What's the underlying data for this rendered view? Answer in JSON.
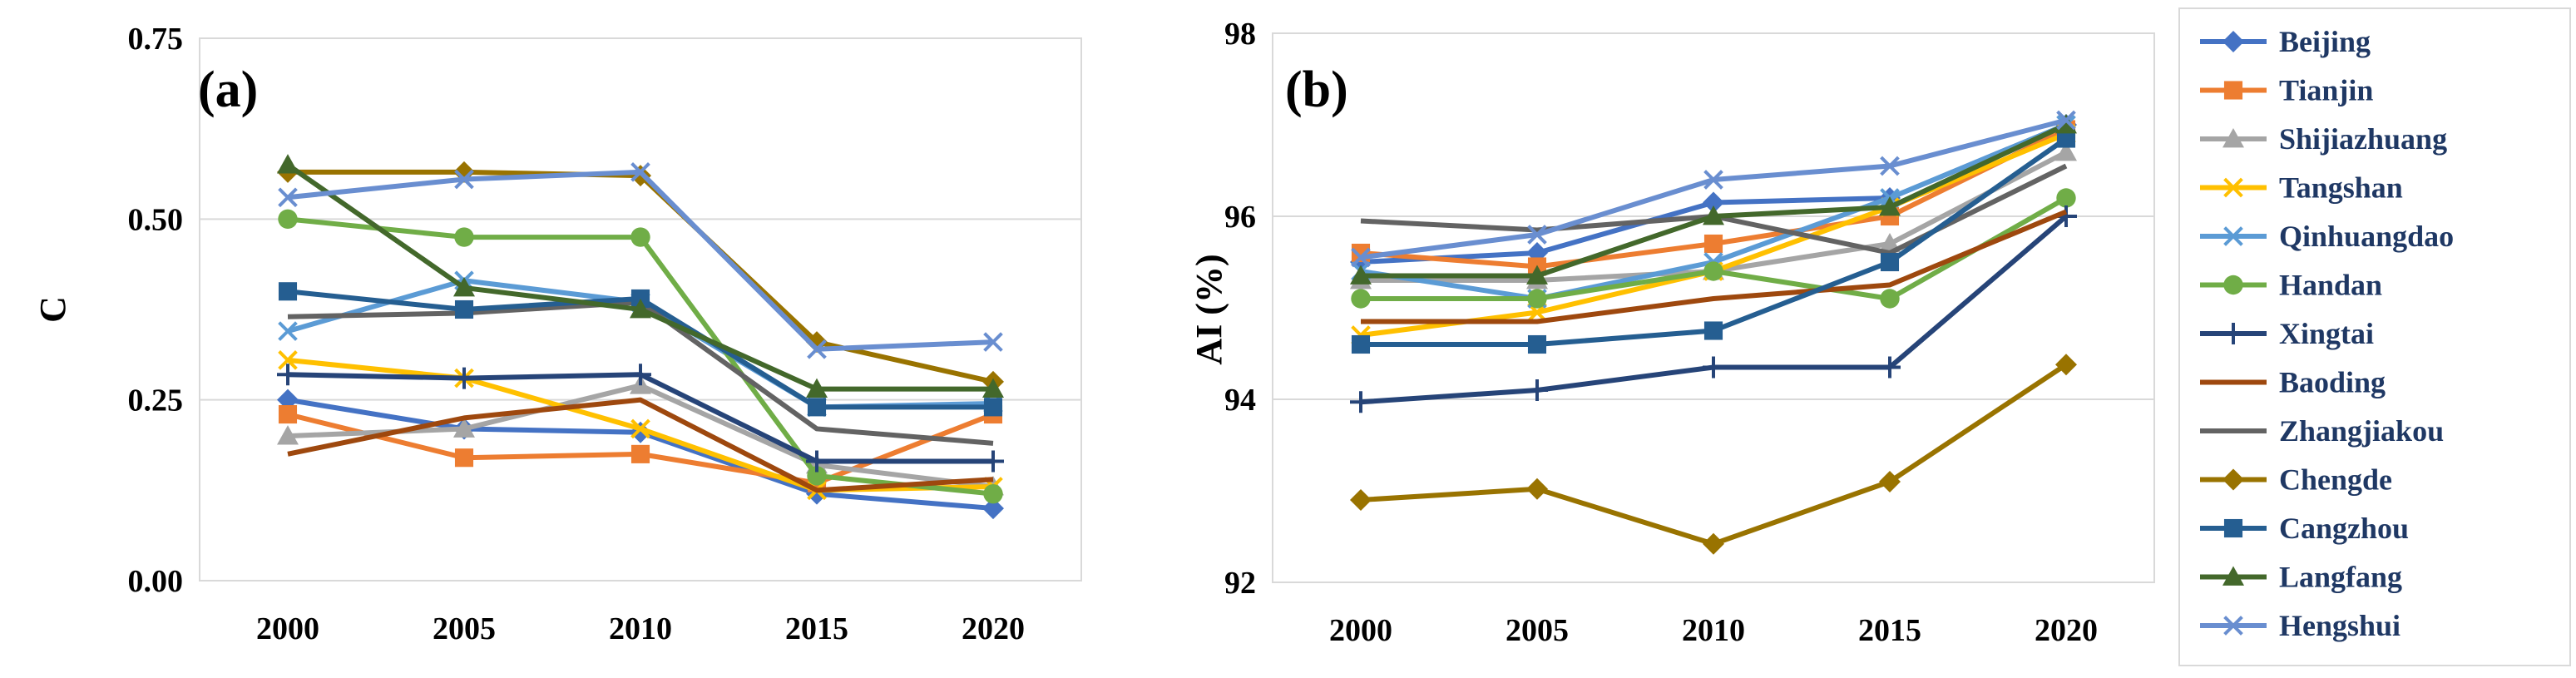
{
  "chart_data": [
    {
      "type": "line",
      "panel_label": "(a)",
      "ylabel": "C",
      "xlabel": "",
      "ylim": [
        0,
        0.75
      ],
      "yticks": [
        "0.00",
        "0.25",
        "0.50",
        "0.75"
      ],
      "grid": true,
      "categories": [
        "2000",
        "2005",
        "2010",
        "2015",
        "2020"
      ],
      "series": [
        {
          "name": "Beijing",
          "values": [
            0.25,
            0.21,
            0.205,
            0.12,
            0.1
          ]
        },
        {
          "name": "Tianjin",
          "values": [
            0.23,
            0.17,
            0.175,
            0.135,
            0.23
          ]
        },
        {
          "name": "Shijiazhuang",
          "values": [
            0.2,
            0.21,
            0.27,
            0.16,
            0.13
          ]
        },
        {
          "name": "Tangshan",
          "values": [
            0.305,
            0.28,
            0.21,
            0.125,
            0.13
          ]
        },
        {
          "name": "Qinhuangdao",
          "values": [
            0.345,
            0.415,
            0.385,
            0.24,
            0.245
          ]
        },
        {
          "name": "Handan",
          "values": [
            0.5,
            0.475,
            0.475,
            0.145,
            0.12
          ]
        },
        {
          "name": "Xingtai",
          "values": [
            0.285,
            0.28,
            0.285,
            0.165,
            0.165
          ]
        },
        {
          "name": "Baoding",
          "values": [
            0.175,
            0.225,
            0.25,
            0.125,
            0.14
          ]
        },
        {
          "name": "Zhangjiakou",
          "values": [
            0.365,
            0.37,
            0.385,
            0.21,
            0.19
          ]
        },
        {
          "name": "Chengde",
          "values": [
            0.565,
            0.565,
            0.56,
            0.33,
            0.275
          ]
        },
        {
          "name": "Cangzhou",
          "values": [
            0.4,
            0.375,
            0.39,
            0.24,
            0.24
          ]
        },
        {
          "name": "Langfang",
          "values": [
            0.575,
            0.405,
            0.375,
            0.265,
            0.265
          ]
        },
        {
          "name": "Hengshui",
          "values": [
            0.53,
            0.555,
            0.565,
            0.32,
            0.33
          ]
        }
      ]
    },
    {
      "type": "line",
      "panel_label": "(b)",
      "ylabel": "AI (%)",
      "xlabel": "",
      "ylim": [
        92,
        98
      ],
      "yticks": [
        "92",
        "94",
        "96",
        "98"
      ],
      "grid": true,
      "categories": [
        "2000",
        "2005",
        "2010",
        "2015",
        "2020"
      ],
      "series": [
        {
          "name": "Beijing",
          "values": [
            95.5,
            95.6,
            96.15,
            96.2,
            97.0
          ]
        },
        {
          "name": "Tianjin",
          "values": [
            95.6,
            95.45,
            95.7,
            96.0,
            96.95
          ]
        },
        {
          "name": "Shijiazhuang",
          "values": [
            95.3,
            95.3,
            95.4,
            95.7,
            96.7
          ]
        },
        {
          "name": "Tangshan",
          "values": [
            94.7,
            94.95,
            95.4,
            96.1,
            96.9
          ]
        },
        {
          "name": "Qinhuangdao",
          "values": [
            95.4,
            95.1,
            95.5,
            96.2,
            97.0
          ]
        },
        {
          "name": "Handan",
          "values": [
            95.1,
            95.1,
            95.4,
            95.1,
            96.2
          ]
        },
        {
          "name": "Xingtai",
          "values": [
            93.97,
            94.1,
            94.35,
            94.35,
            96.0
          ]
        },
        {
          "name": "Baoding",
          "values": [
            94.85,
            94.85,
            95.1,
            95.25,
            96.05
          ]
        },
        {
          "name": "Zhangjiakou",
          "values": [
            95.95,
            95.85,
            96.0,
            95.6,
            96.55
          ]
        },
        {
          "name": "Chengde",
          "values": [
            92.9,
            93.02,
            92.42,
            93.1,
            94.38
          ]
        },
        {
          "name": "Cangzhou",
          "values": [
            94.6,
            94.6,
            94.75,
            95.5,
            96.85
          ]
        },
        {
          "name": "Langfang",
          "values": [
            95.35,
            95.35,
            96.0,
            96.1,
            97.0
          ]
        },
        {
          "name": "Hengshui",
          "values": [
            95.55,
            95.8,
            96.4,
            96.55,
            97.05
          ]
        }
      ]
    }
  ],
  "legend": {
    "placement": "right",
    "entries": [
      {
        "name": "Beijing",
        "color": "#4472C4",
        "marker": "diamond"
      },
      {
        "name": "Tianjin",
        "color": "#ED7D31",
        "marker": "square"
      },
      {
        "name": "Shijiazhuang",
        "color": "#A5A5A5",
        "marker": "triangle"
      },
      {
        "name": "Tangshan",
        "color": "#FFC000",
        "marker": "x"
      },
      {
        "name": "Qinhuangdao",
        "color": "#5B9BD5",
        "marker": "x"
      },
      {
        "name": "Handan",
        "color": "#70AD47",
        "marker": "circle"
      },
      {
        "name": "Xingtai",
        "color": "#264478",
        "marker": "plus"
      },
      {
        "name": "Baoding",
        "color": "#9E480E",
        "marker": "none"
      },
      {
        "name": "Zhangjiakou",
        "color": "#636363",
        "marker": "none"
      },
      {
        "name": "Chengde",
        "color": "#997300",
        "marker": "diamond"
      },
      {
        "name": "Cangzhou",
        "color": "#255E91",
        "marker": "square"
      },
      {
        "name": "Langfang",
        "color": "#43682B",
        "marker": "triangle"
      },
      {
        "name": "Hengshui",
        "color": "#698ED0",
        "marker": "x"
      }
    ]
  }
}
